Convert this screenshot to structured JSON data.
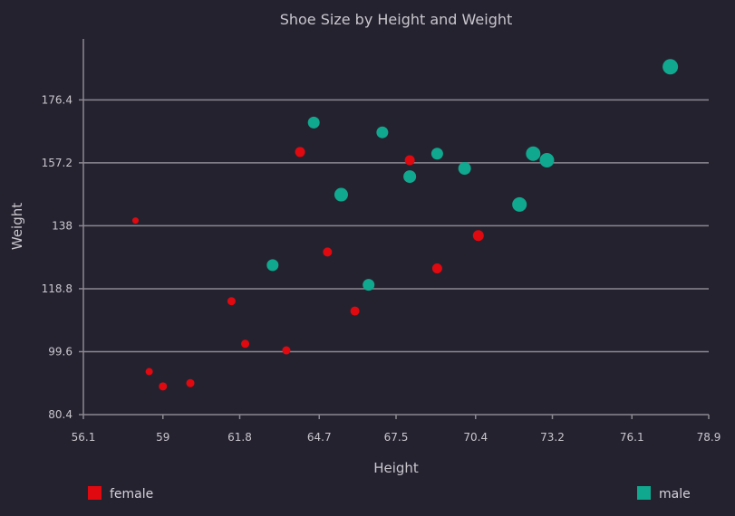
{
  "chart_data": {
    "type": "scatter",
    "title": "Shoe Size by Height and Weight",
    "xlabel": "Height",
    "ylabel": "Weight",
    "xlim": [
      56.1,
      78.9
    ],
    "ylim": [
      80.4,
      195
    ],
    "xticks": [
      "56.1",
      "59",
      "61.8",
      "64.7",
      "67.5",
      "70.4",
      "73.2",
      "76.1",
      "78.9"
    ],
    "yticks": [
      "80.4",
      "99.6",
      "118.8",
      "138",
      "157.2",
      "176.4"
    ],
    "grid": "horizontal",
    "legend_position": "bottom",
    "size_encoding": "shoe size",
    "series": [
      {
        "name": "female",
        "color": "#e0090f",
        "points": [
          {
            "x": 58.0,
            "y": 139.6,
            "size": 5
          },
          {
            "x": 58.5,
            "y": 93.5,
            "size": 6
          },
          {
            "x": 59.0,
            "y": 89.0,
            "size": 7
          },
          {
            "x": 60.0,
            "y": 90.0,
            "size": 7
          },
          {
            "x": 61.5,
            "y": 115.0,
            "size": 7
          },
          {
            "x": 62.0,
            "y": 102.0,
            "size": 7
          },
          {
            "x": 63.5,
            "y": 100.0,
            "size": 7
          },
          {
            "x": 64.0,
            "y": 160.5,
            "size": 9
          },
          {
            "x": 65.0,
            "y": 130.0,
            "size": 8
          },
          {
            "x": 66.0,
            "y": 112.0,
            "size": 8
          },
          {
            "x": 68.0,
            "y": 158.0,
            "size": 9
          },
          {
            "x": 69.0,
            "y": 125.0,
            "size": 9
          },
          {
            "x": 70.5,
            "y": 135.0,
            "size": 10
          }
        ]
      },
      {
        "name": "male",
        "color": "#10a88e",
        "points": [
          {
            "x": 63.0,
            "y": 126.0,
            "size": 11
          },
          {
            "x": 64.5,
            "y": 169.5,
            "size": 11
          },
          {
            "x": 65.5,
            "y": 147.5,
            "size": 13
          },
          {
            "x": 66.5,
            "y": 120.0,
            "size": 11
          },
          {
            "x": 67.0,
            "y": 166.5,
            "size": 11
          },
          {
            "x": 68.0,
            "y": 153.0,
            "size": 12
          },
          {
            "x": 69.0,
            "y": 160.0,
            "size": 11
          },
          {
            "x": 70.0,
            "y": 155.5,
            "size": 12
          },
          {
            "x": 72.0,
            "y": 144.5,
            "size": 14
          },
          {
            "x": 72.5,
            "y": 160.0,
            "size": 14
          },
          {
            "x": 73.0,
            "y": 158.0,
            "size": 14
          },
          {
            "x": 77.5,
            "y": 186.5,
            "size": 15
          }
        ]
      }
    ]
  }
}
